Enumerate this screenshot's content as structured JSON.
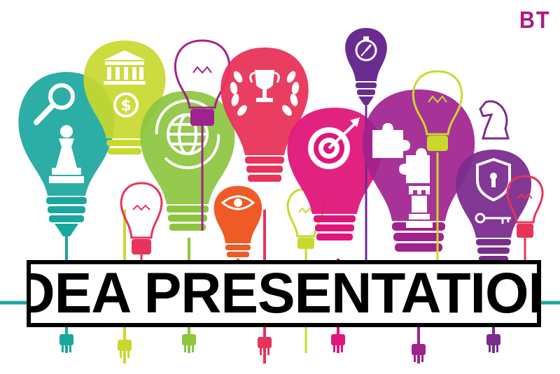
{
  "brand": {
    "text": "BT",
    "color": "#b0197e"
  },
  "title": {
    "text": "IDEA PRESENTATION"
  },
  "colors": {
    "teal": "#1aa7a0",
    "lime": "#c8d82c",
    "green": "#8cc63f",
    "orange": "#ef5b25",
    "red": "#e8335a",
    "magenta": "#e0167a",
    "purple": "#6a2c91",
    "violet": "#a0228f",
    "plum": "#7b2d8e",
    "line": "#1aa7a0"
  },
  "icons": [
    "magnifier-icon",
    "pawn-icon",
    "bank-icon",
    "dollar-icon",
    "globe-icon",
    "eye-icon",
    "trophy-icon",
    "laurel-icon",
    "target-icon",
    "puzzle-icon",
    "rook-icon",
    "compass-icon",
    "knight-icon",
    "shield-lock-icon",
    "key-icon"
  ]
}
